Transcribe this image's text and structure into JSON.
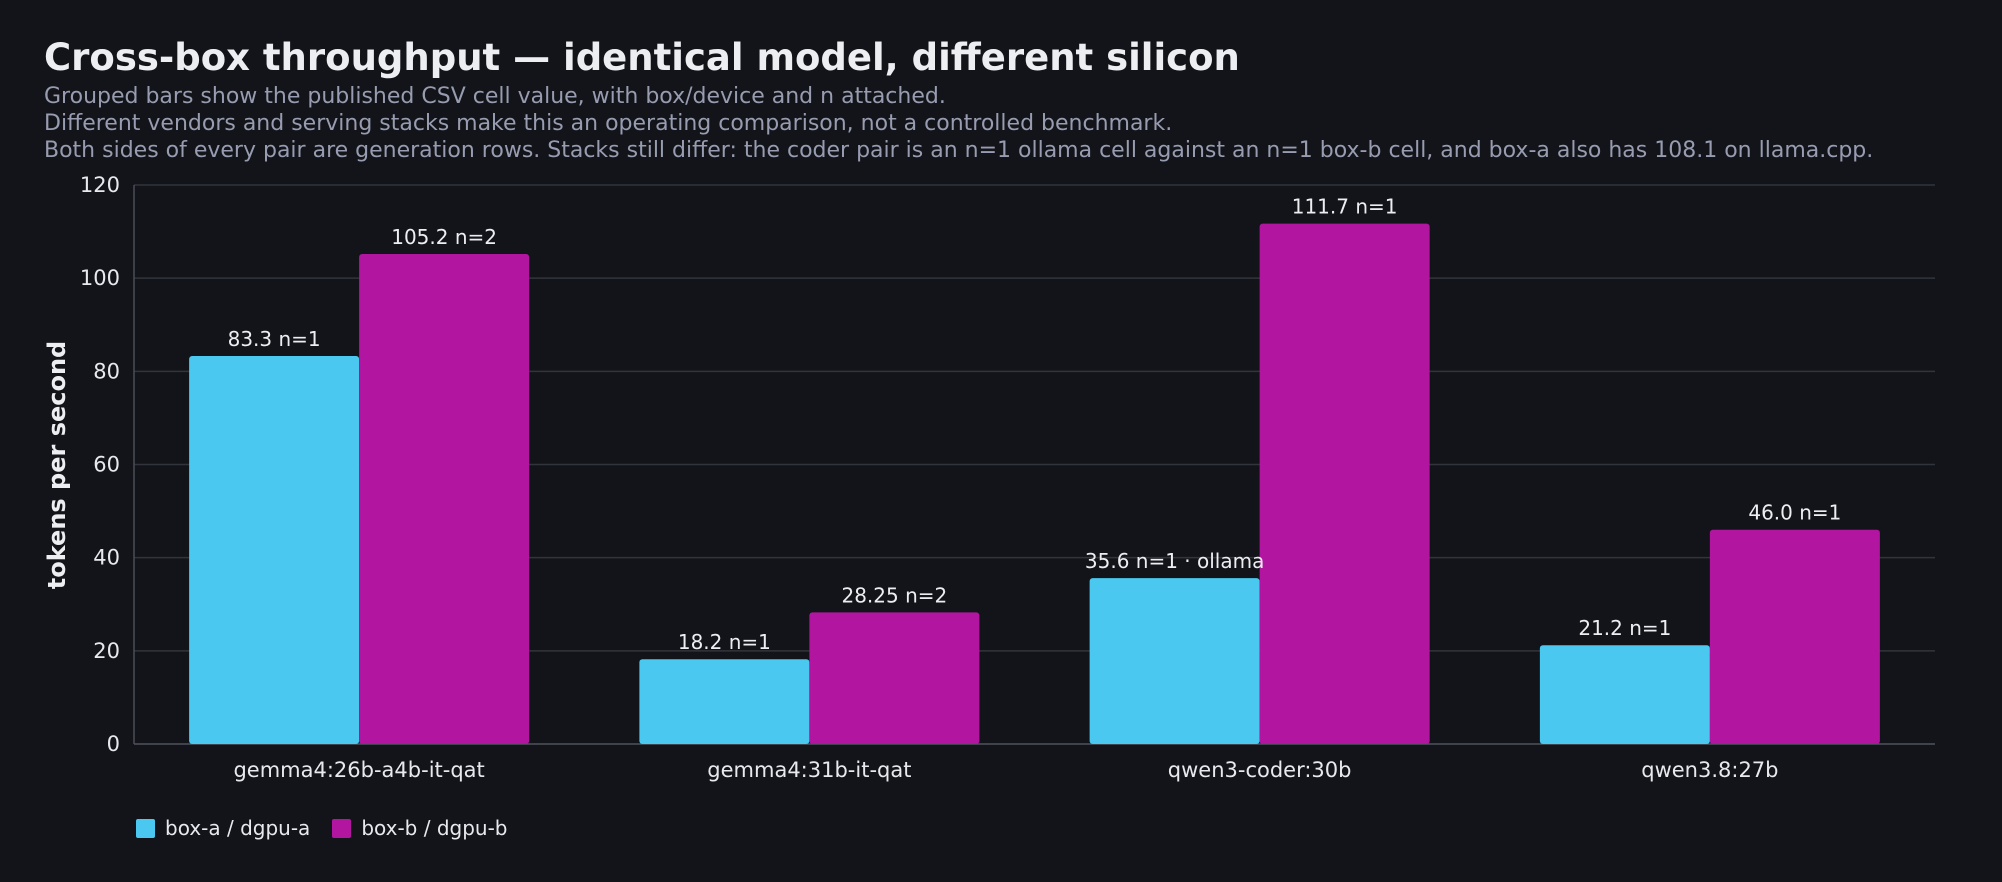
{
  "header": {
    "title": "Cross-box throughput — identical model, different silicon",
    "subtitles": [
      "Grouped bars show the published CSV cell value, with box/device and n attached.",
      "Different vendors and serving stacks make this an operating comparison, not a controlled benchmark.",
      "Both sides of every pair are generation rows. Stacks still differ: the coder pair is an n=1 ollama cell against an n=1 box-b cell, and box-a also has 108.1 on llama.cpp."
    ]
  },
  "chart_data": {
    "type": "bar",
    "title": "Cross-box throughput — identical model, different silicon",
    "xlabel": "",
    "ylabel": "tokens per second",
    "ylim": [
      0,
      120
    ],
    "yticks": [
      0,
      20,
      40,
      60,
      80,
      100,
      120
    ],
    "grid": true,
    "legend_position": "bottom-left",
    "categories": [
      "gemma4:26b-a4b-it-qat",
      "gemma4:31b-it-qat",
      "qwen3-coder:30b",
      "qwen3.8:27b"
    ],
    "series": [
      {
        "name": "box-a / dgpu-a",
        "color": "#4ac8f0",
        "values": [
          83.3,
          18.2,
          35.6,
          21.2
        ],
        "labels": [
          "83.3 n=1",
          "18.2 n=1",
          "35.6 n=1 · ollama",
          "21.2 n=1"
        ]
      },
      {
        "name": "box-b / dgpu-b",
        "color": "#b216a0",
        "values": [
          105.2,
          28.25,
          111.7,
          46.0
        ],
        "labels": [
          "105.2 n=2",
          "28.25 n=2",
          "111.7 n=1",
          "46.0 n=1"
        ]
      }
    ]
  },
  "colors": {
    "background": "#131419",
    "grid": "#32343d",
    "axis": "#4a4d58"
  }
}
